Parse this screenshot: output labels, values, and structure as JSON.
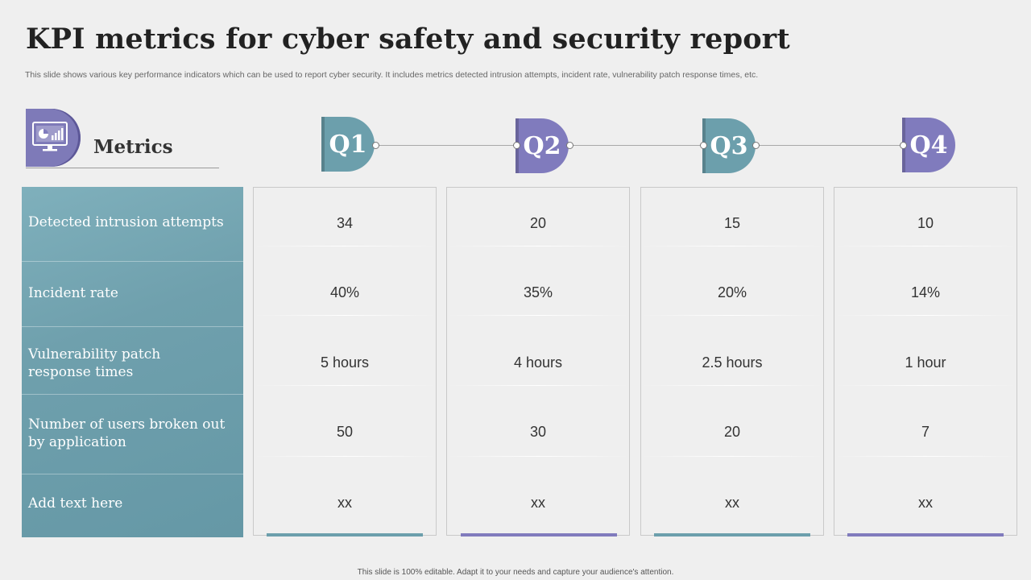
{
  "title": "KPI metrics for cyber safety and security report",
  "subtitle": "This slide shows various key performance indicators which can be used to report cyber  security. It includes metrics detected intrusion attempts, incident rate, vulnerability patch response times, etc.",
  "metrics_header": "Metrics",
  "metrics_icon": "monitor-chart-icon",
  "quarters": [
    "Q1",
    "Q2",
    "Q3",
    "Q4"
  ],
  "metrics": [
    "Detected intrusion attempts",
    "Incident rate",
    "Vulnerability patch\n response times",
    "Number of users broken out\n by application",
    "Add text here"
  ],
  "values": [
    [
      "34",
      "40%",
      "5 hours",
      "50",
      "xx"
    ],
    [
      "20",
      "35%",
      "4 hours",
      "30",
      "xx"
    ],
    [
      "15",
      "20%",
      "2.5 hours",
      "20",
      "xx"
    ],
    [
      "10",
      "14%",
      "1 hour",
      "7",
      "xx"
    ]
  ],
  "colors": {
    "teal": "#6c9fac",
    "purple": "#807bbd"
  },
  "footer": "This slide is 100% editable.  Adapt it to your needs and capture your audience's attention."
}
